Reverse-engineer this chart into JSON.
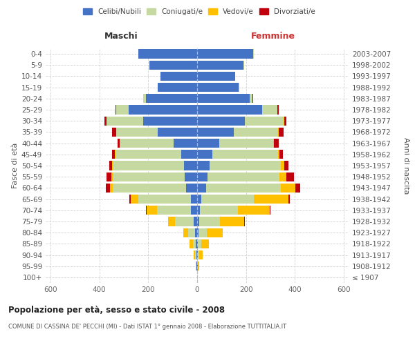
{
  "age_groups": [
    "100+",
    "95-99",
    "90-94",
    "85-89",
    "80-84",
    "75-79",
    "70-74",
    "65-69",
    "60-64",
    "55-59",
    "50-54",
    "45-49",
    "40-44",
    "35-39",
    "30-34",
    "25-29",
    "20-24",
    "15-19",
    "10-14",
    "5-9",
    "0-4"
  ],
  "birth_years": [
    "≤ 1907",
    "1908-1912",
    "1913-1917",
    "1918-1922",
    "1923-1927",
    "1928-1932",
    "1933-1937",
    "1938-1942",
    "1943-1947",
    "1948-1952",
    "1953-1957",
    "1958-1962",
    "1963-1967",
    "1968-1972",
    "1973-1977",
    "1978-1982",
    "1983-1987",
    "1988-1992",
    "1993-1997",
    "1998-2002",
    "2003-2007"
  ],
  "males": {
    "celibi": [
      1,
      2,
      3,
      5,
      8,
      15,
      25,
      25,
      45,
      50,
      55,
      65,
      95,
      160,
      220,
      280,
      210,
      160,
      150,
      195,
      240
    ],
    "coniugati": [
      0,
      2,
      5,
      12,
      28,
      75,
      140,
      215,
      300,
      295,
      290,
      270,
      220,
      170,
      150,
      50,
      10,
      2,
      0,
      0,
      0
    ],
    "vedovi": [
      0,
      2,
      5,
      14,
      22,
      28,
      42,
      32,
      12,
      7,
      4,
      2,
      2,
      2,
      2,
      2,
      0,
      0,
      0,
      0,
      0
    ],
    "divorziati": [
      0,
      0,
      0,
      0,
      0,
      0,
      2,
      5,
      18,
      18,
      10,
      10,
      8,
      15,
      7,
      2,
      0,
      0,
      0,
      0,
      0
    ]
  },
  "females": {
    "nubili": [
      0,
      2,
      2,
      4,
      5,
      8,
      12,
      18,
      38,
      42,
      52,
      62,
      92,
      150,
      195,
      265,
      215,
      170,
      155,
      190,
      230
    ],
    "coniugate": [
      0,
      2,
      6,
      12,
      35,
      85,
      155,
      215,
      305,
      295,
      290,
      268,
      218,
      182,
      158,
      62,
      12,
      3,
      2,
      2,
      2
    ],
    "vedove": [
      0,
      4,
      14,
      32,
      65,
      100,
      130,
      140,
      60,
      28,
      14,
      8,
      5,
      3,
      3,
      2,
      0,
      0,
      0,
      0,
      0
    ],
    "divorziate": [
      0,
      0,
      0,
      0,
      0,
      2,
      2,
      5,
      18,
      32,
      18,
      14,
      18,
      18,
      10,
      4,
      2,
      0,
      0,
      0,
      0
    ]
  },
  "colors": {
    "celibi_nubili": "#4472c4",
    "coniugati": "#c5d9a0",
    "vedovi": "#ffc000",
    "divorziati": "#c0000c"
  },
  "title": "Popolazione per età, sesso e stato civile - 2008",
  "subtitle": "COMUNE DI CASSINA DE' PECCHI (MI) - Dati ISTAT 1° gennaio 2008 - Elaborazione TUTTITALIA.IT",
  "xlabel_left": "Maschi",
  "xlabel_right": "Femmine",
  "ylabel_left": "Fasce di età",
  "ylabel_right": "Anni di nascita",
  "xlim": 620,
  "background_color": "#ffffff",
  "grid_color": "#cccccc"
}
